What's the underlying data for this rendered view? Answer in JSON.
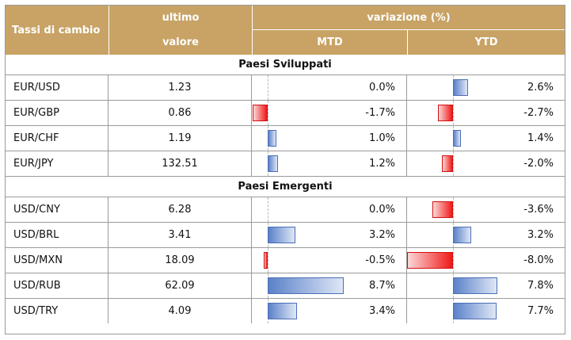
{
  "header": {
    "col_name": "Tassi di cambio",
    "col_last_line1": "ultimo",
    "col_last_line2": "valore",
    "col_change": "variazione (%)",
    "col_mtd": "MTD",
    "col_ytd": "YTD"
  },
  "colors": {
    "header_bg": "#c8a365",
    "positive_bar": "#5b81c9",
    "negative_bar": "#f01818"
  },
  "sections": [
    {
      "title": "Paesi Sviluppati",
      "rows": [
        {
          "name": "EUR/USD",
          "last": "1.23",
          "mtd": 0.0,
          "mtd_label": "0.0%",
          "ytd": 2.6,
          "ytd_label": "2.6%"
        },
        {
          "name": "EUR/GBP",
          "last": "0.86",
          "mtd": -1.7,
          "mtd_label": "-1.7%",
          "ytd": -2.7,
          "ytd_label": "-2.7%"
        },
        {
          "name": "EUR/CHF",
          "last": "1.19",
          "mtd": 1.0,
          "mtd_label": "1.0%",
          "ytd": 1.4,
          "ytd_label": "1.4%"
        },
        {
          "name": "EUR/JPY",
          "last": "132.51",
          "mtd": 1.2,
          "mtd_label": "1.2%",
          "ytd": -2.0,
          "ytd_label": "-2.0%"
        }
      ]
    },
    {
      "title": "Paesi Emergenti",
      "rows": [
        {
          "name": "USD/CNY",
          "last": "6.28",
          "mtd": 0.0,
          "mtd_label": "0.0%",
          "ytd": -3.6,
          "ytd_label": "-3.6%"
        },
        {
          "name": "USD/BRL",
          "last": "3.41",
          "mtd": 3.2,
          "mtd_label": "3.2%",
          "ytd": 3.2,
          "ytd_label": "3.2%"
        },
        {
          "name": "USD/MXN",
          "last": "18.09",
          "mtd": -0.5,
          "mtd_label": "-0.5%",
          "ytd": -8.0,
          "ytd_label": "-8.0%"
        },
        {
          "name": "USD/RUB",
          "last": "62.09",
          "mtd": 8.7,
          "mtd_label": "8.7%",
          "ytd": 7.8,
          "ytd_label": "7.8%"
        },
        {
          "name": "USD/TRY",
          "last": "4.09",
          "mtd": 3.4,
          "mtd_label": "3.4%",
          "ytd": 7.7,
          "ytd_label": "7.7%"
        }
      ]
    }
  ]
}
